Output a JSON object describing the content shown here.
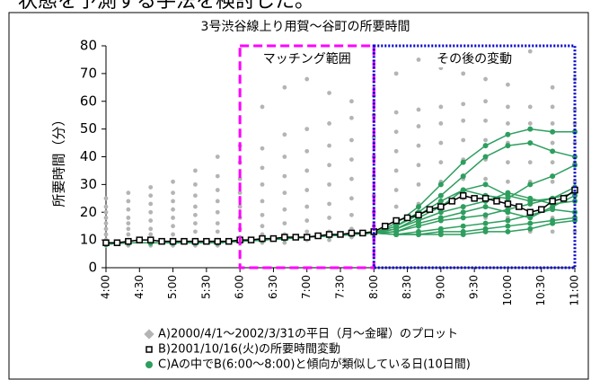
{
  "heading": "状態を予測する手法を検討した。",
  "chart_data": {
    "type": "scatter-line",
    "title": "3号渋谷線上り用賀～谷町の所要時間",
    "ylabel": "所要時間（分）",
    "xlim": [
      240,
      660
    ],
    "ylim": [
      0,
      80
    ],
    "yticks": [
      0,
      10,
      20,
      30,
      40,
      50,
      60,
      70,
      80
    ],
    "xticks": [
      {
        "value": 240,
        "label": "4:00"
      },
      {
        "value": 270,
        "label": "4:30"
      },
      {
        "value": 300,
        "label": "5:00"
      },
      {
        "value": 330,
        "label": "5:30"
      },
      {
        "value": 360,
        "label": "6:00"
      },
      {
        "value": 390,
        "label": "6:30"
      },
      {
        "value": 420,
        "label": "7:00"
      },
      {
        "value": 450,
        "label": "7:30"
      },
      {
        "value": 480,
        "label": "8:00"
      },
      {
        "value": 510,
        "label": "8:30"
      },
      {
        "value": 540,
        "label": "9:00"
      },
      {
        "value": 570,
        "label": "9:30"
      },
      {
        "value": 600,
        "label": "10:00"
      },
      {
        "value": 630,
        "label": "10:30"
      },
      {
        "value": 660,
        "label": "11:00"
      }
    ],
    "grid": false,
    "legend": "bottom",
    "annotations": [
      {
        "text": "マッチング範囲",
        "x_range": [
          360,
          480
        ],
        "color": "#ff00ff",
        "style": "dashed"
      },
      {
        "text": "その後の変動",
        "x_range": [
          480,
          660
        ],
        "color": "#0000cc",
        "style": "dotted"
      }
    ],
    "series": [
      {
        "name": "A)2000/4/1～2002/3/31の平日（月～金曜）のプロット",
        "color": "#b4b4b4",
        "kind": "points",
        "x": [
          240,
          260,
          280,
          300,
          320,
          340,
          360,
          380,
          400,
          420,
          440,
          460,
          480,
          500,
          520,
          540,
          560,
          580,
          600,
          620,
          640,
          660
        ],
        "values": [
          [
            8,
            10,
            12,
            14,
            16,
            18,
            20,
            22,
            25
          ],
          [
            8,
            10,
            12,
            14,
            16,
            18,
            21,
            24,
            27
          ],
          [
            8,
            10,
            12,
            14,
            17,
            20,
            23,
            26,
            29
          ],
          [
            8,
            10,
            12,
            15,
            18,
            21,
            24,
            27,
            31
          ],
          [
            8,
            10,
            13,
            16,
            19,
            22,
            26,
            30,
            35
          ],
          [
            8,
            10,
            13,
            16,
            20,
            24,
            28,
            33,
            40
          ],
          [
            9,
            11,
            14,
            18,
            22,
            27,
            32,
            38,
            44
          ],
          [
            9,
            12,
            15,
            19,
            24,
            30,
            36,
            43,
            58
          ],
          [
            9,
            12,
            16,
            21,
            27,
            33,
            40,
            48,
            65
          ],
          [
            10,
            13,
            17,
            22,
            28,
            35,
            42,
            50,
            68
          ],
          [
            10,
            13,
            18,
            23,
            30,
            37,
            44,
            52,
            63
          ],
          [
            11,
            14,
            19,
            25,
            32,
            39,
            46,
            54,
            60
          ],
          [
            11,
            15,
            20,
            26,
            33,
            40,
            47,
            55,
            62
          ],
          [
            12,
            16,
            22,
            28,
            35,
            42,
            49,
            56,
            70
          ],
          [
            12,
            17,
            23,
            30,
            37,
            44,
            51,
            57,
            75
          ],
          [
            13,
            18,
            24,
            31,
            38,
            45,
            52,
            58,
            72
          ],
          [
            13,
            18,
            25,
            32,
            39,
            46,
            53,
            59,
            70
          ],
          [
            13,
            18,
            25,
            32,
            39,
            46,
            53,
            60,
            68
          ],
          [
            13,
            18,
            24,
            31,
            38,
            45,
            52,
            58,
            66
          ],
          [
            13,
            18,
            24,
            31,
            38,
            45,
            52,
            58,
            78
          ],
          [
            13,
            18,
            24,
            31,
            38,
            45,
            52,
            58,
            65
          ],
          [
            13,
            18,
            24,
            31,
            38,
            45,
            52,
            57,
            68
          ]
        ]
      },
      {
        "name": "C)Aの中でB(6:00～8:00)と傾向が類似している日(10日間)",
        "color": "#2e9e5e",
        "kind": "lines",
        "x": [
          240,
          260,
          280,
          300,
          320,
          340,
          360,
          380,
          400,
          420,
          440,
          460,
          480,
          500,
          520,
          540,
          560,
          580,
          600,
          620,
          640,
          660
        ],
        "values": [
          [
            8.5,
            9,
            9,
            9,
            9,
            9,
            9.5,
            10,
            10.5,
            11,
            11.5,
            12,
            12.5,
            16,
            22,
            30,
            38,
            44,
            48,
            50,
            49,
            49
          ],
          [
            8.5,
            9,
            9,
            9,
            9,
            9,
            9.5,
            10,
            10.5,
            11,
            11.5,
            12,
            12.5,
            15,
            20,
            26,
            33,
            40,
            44,
            45,
            42,
            40
          ],
          [
            8.5,
            9,
            9,
            9,
            9,
            9,
            9.5,
            10,
            10.5,
            11,
            11.5,
            12,
            12.5,
            14,
            18,
            22,
            28,
            26,
            25,
            30,
            33,
            37
          ],
          [
            8.5,
            9,
            9,
            9,
            9,
            9,
            9.5,
            10,
            10.5,
            11,
            11.5,
            12,
            12.5,
            15,
            19,
            24,
            28,
            30,
            26,
            24,
            25,
            29
          ],
          [
            8.5,
            9,
            9,
            9,
            9,
            9,
            9.5,
            10,
            10.5,
            11,
            11.5,
            12,
            12.5,
            14,
            17,
            20,
            22,
            24,
            27,
            25,
            23,
            24
          ],
          [
            8.5,
            9,
            9,
            9,
            9,
            9,
            9.5,
            10,
            10.5,
            11,
            11.5,
            12,
            12.5,
            13,
            16,
            18,
            20,
            22,
            20,
            18,
            22,
            26
          ],
          [
            8.5,
            9,
            9,
            9,
            9,
            9,
            9.5,
            10,
            10.5,
            11,
            11.5,
            12,
            12.5,
            13,
            15,
            17,
            18,
            19,
            21,
            23,
            25,
            27
          ],
          [
            8.5,
            9,
            9,
            9,
            9,
            9,
            9.5,
            10,
            10.5,
            11,
            11.5,
            12,
            12.5,
            12,
            13,
            14,
            15,
            16,
            17,
            19,
            21,
            20
          ],
          [
            8.5,
            9,
            9,
            9,
            9,
            9,
            9.5,
            10,
            10.5,
            11,
            11.5,
            12,
            12.5,
            12,
            12,
            13,
            13,
            14,
            15,
            16,
            17,
            18
          ],
          [
            8.5,
            9,
            9,
            9,
            9,
            9,
            9.5,
            10,
            10.5,
            11,
            11.5,
            12,
            12.5,
            12,
            12,
            12,
            12,
            13,
            13,
            14,
            16,
            17
          ]
        ]
      },
      {
        "name": "B)2001/10/16(火)の所要時間変動",
        "color": "#000000",
        "kind": "squares",
        "x": [
          240,
          250,
          260,
          270,
          280,
          290,
          300,
          310,
          320,
          330,
          340,
          350,
          360,
          370,
          380,
          390,
          400,
          410,
          420,
          430,
          440,
          450,
          460,
          470,
          480,
          490,
          500,
          510,
          520,
          530,
          540,
          550,
          560,
          570,
          580,
          590,
          600,
          610,
          620,
          630,
          640,
          650,
          660
        ],
        "values": [
          9,
          9,
          9.5,
          10,
          10,
          9.5,
          9.5,
          9.5,
          9.5,
          9.5,
          9.5,
          9.5,
          10,
          10,
          10.5,
          10.5,
          11,
          11,
          11,
          11.5,
          12,
          12,
          12.5,
          12.5,
          13,
          15,
          17,
          18,
          19,
          21,
          22,
          24,
          26,
          25,
          25,
          24,
          23,
          22,
          20,
          21,
          24,
          25,
          28
        ]
      }
    ]
  }
}
